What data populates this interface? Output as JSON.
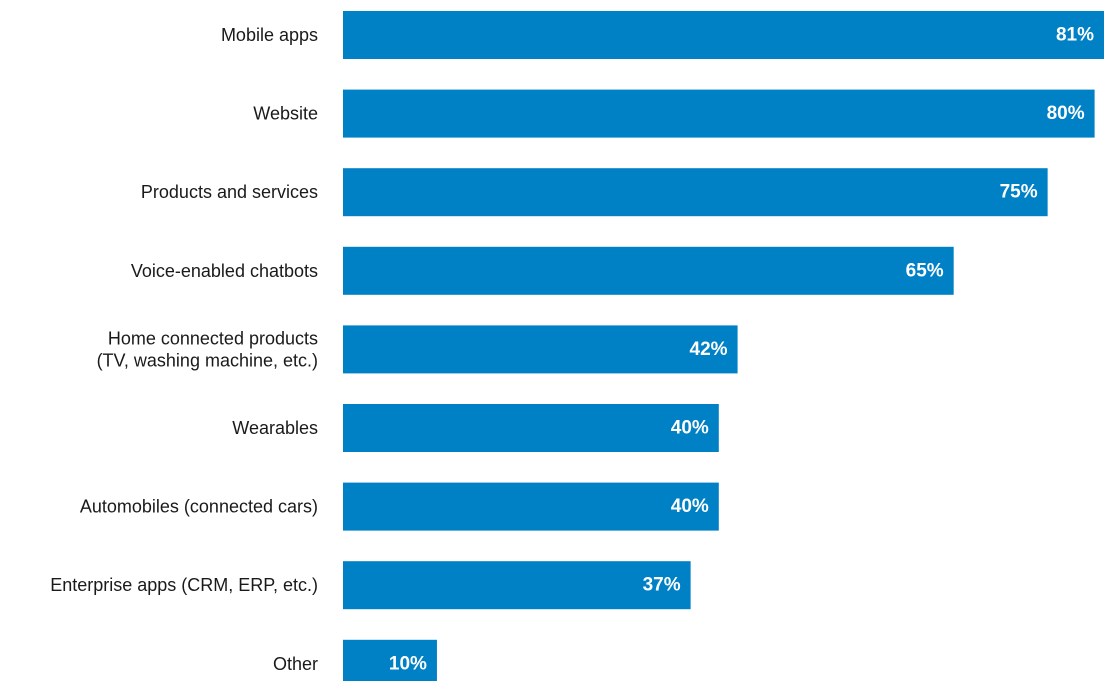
{
  "chart_data": {
    "type": "bar",
    "orientation": "horizontal",
    "categories": [
      [
        "Mobile apps"
      ],
      [
        "Website"
      ],
      [
        "Products and services"
      ],
      [
        "Voice-enabled chatbots"
      ],
      [
        "Home connected products",
        "(TV, washing machine, etc.)"
      ],
      [
        "Wearables"
      ],
      [
        "Automobiles (connected cars)"
      ],
      [
        "Enterprise apps (CRM, ERP, etc.)"
      ],
      [
        "Other"
      ]
    ],
    "values": [
      81,
      80,
      75,
      65,
      42,
      40,
      40,
      37,
      10
    ],
    "value_labels": [
      "81%",
      "80%",
      "75%",
      "65%",
      "42%",
      "40%",
      "40%",
      "37%",
      "10%"
    ],
    "xlim": [
      0,
      81
    ],
    "grid": false,
    "bar_color": "#0081c6",
    "value_label_color": "#ffffff"
  }
}
